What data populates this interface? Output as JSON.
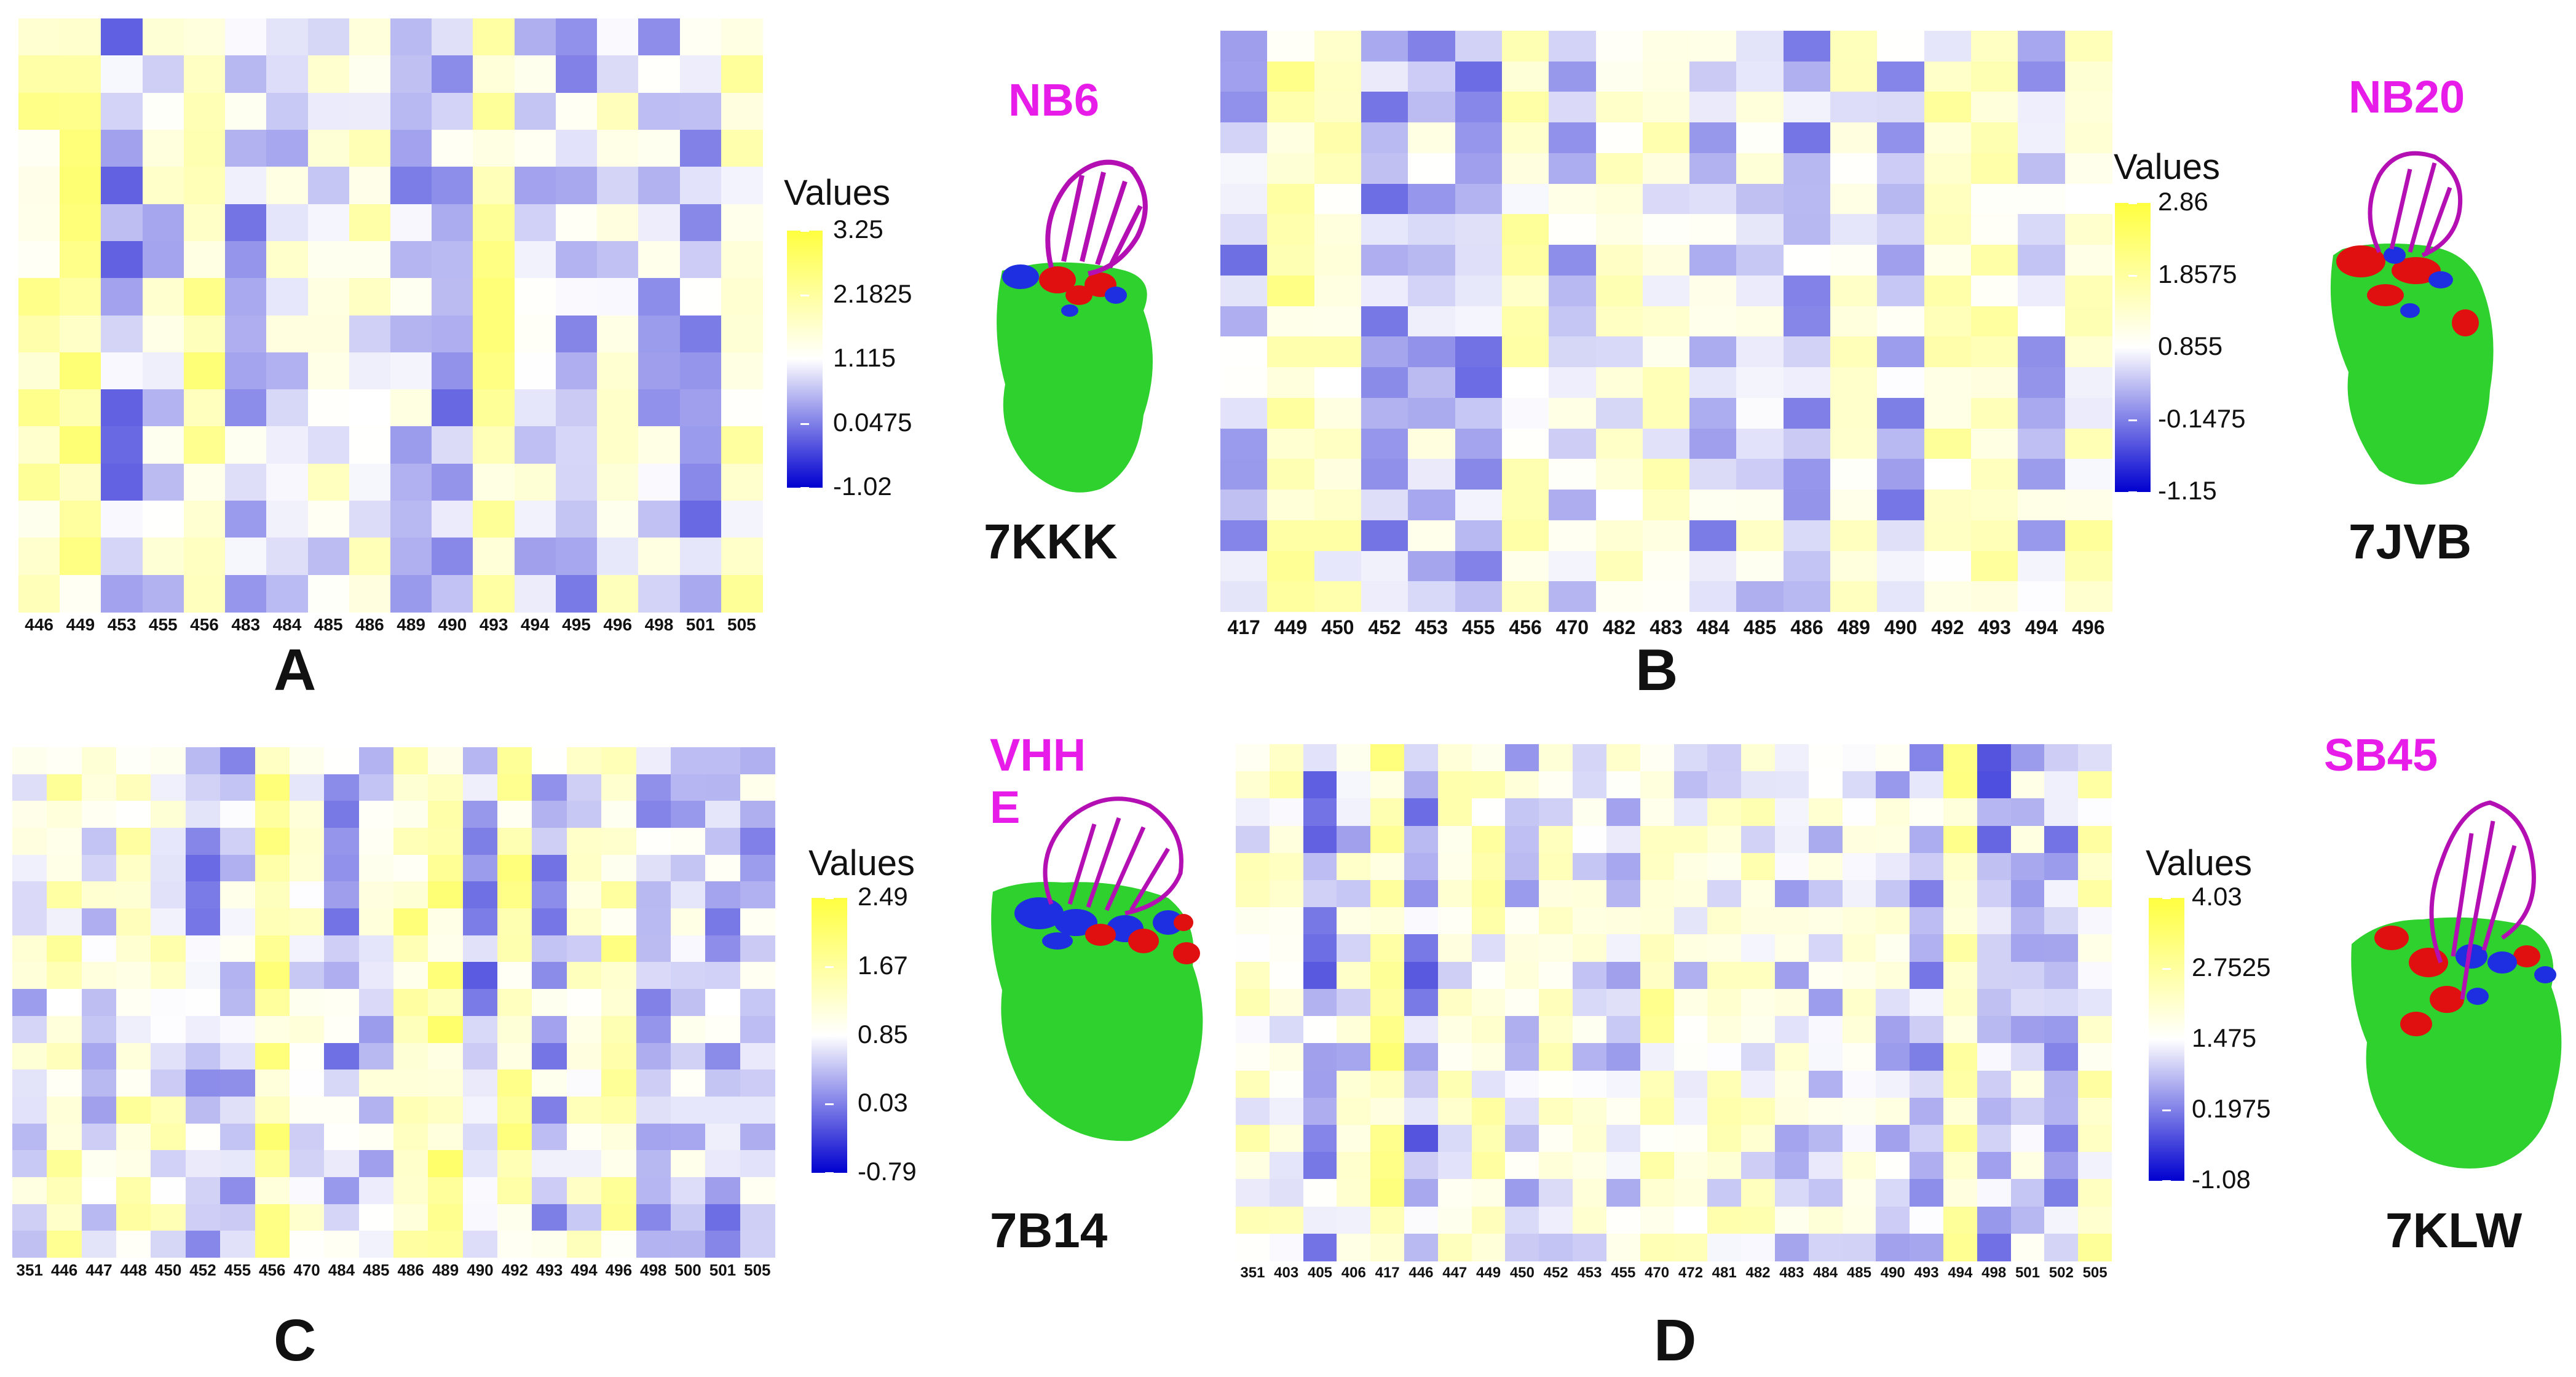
{
  "chart_data": [
    {
      "type": "heatmap",
      "panel_label": "A",
      "nanobody": "NB6",
      "pdb_id": "7KKK",
      "legend_title": "Values",
      "color_scale": [
        "#0000d0",
        "#ffffff",
        "#ffff40"
      ],
      "legend_ticks": [
        "3.25",
        "2.1825",
        "1.115",
        "0.0475",
        "-1.02"
      ],
      "value_range": [
        -1.02,
        3.25
      ],
      "x_tick_labels": [
        "446",
        "449",
        "453",
        "455",
        "456",
        "483",
        "484",
        "485",
        "486",
        "489",
        "490",
        "493",
        "494",
        "495",
        "496",
        "498",
        "501",
        "505"
      ],
      "row_count": 16
    },
    {
      "type": "heatmap",
      "panel_label": "B",
      "nanobody": "NB20",
      "pdb_id": "7JVB",
      "legend_title": "Values",
      "color_scale": [
        "#0000d0",
        "#ffffff",
        "#ffff40"
      ],
      "legend_ticks": [
        "2.86",
        "1.8575",
        "0.855",
        "-0.1475",
        "-1.15"
      ],
      "value_range": [
        -1.15,
        2.86
      ],
      "x_tick_labels": [
        "417",
        "449",
        "450",
        "452",
        "453",
        "455",
        "456",
        "470",
        "482",
        "483",
        "484",
        "485",
        "486",
        "489",
        "490",
        "492",
        "493",
        "494",
        "496"
      ],
      "row_count": 19
    },
    {
      "type": "heatmap",
      "panel_label": "C",
      "nanobody": "VHH E",
      "pdb_id": "7B14",
      "legend_title": "Values",
      "color_scale": [
        "#0000d0",
        "#ffffff",
        "#ffff40"
      ],
      "legend_ticks": [
        "2.49",
        "1.67",
        "0.85",
        "0.03",
        "-0.79"
      ],
      "value_range": [
        -0.79,
        2.49
      ],
      "x_tick_labels": [
        "351",
        "446",
        "447",
        "448",
        "450",
        "452",
        "455",
        "456",
        "470",
        "484",
        "485",
        "486",
        "489",
        "490",
        "492",
        "493",
        "494",
        "496",
        "498",
        "500",
        "501",
        "505"
      ],
      "row_count": 19
    },
    {
      "type": "heatmap",
      "panel_label": "D",
      "nanobody": "SB45",
      "pdb_id": "7KLW",
      "legend_title": "Values",
      "color_scale": [
        "#0000d0",
        "#ffffff",
        "#ffff40"
      ],
      "legend_ticks": [
        "4.03",
        "2.7525",
        "1.475",
        "0.1975",
        "-1.08"
      ],
      "value_range": [
        -1.08,
        4.03
      ],
      "x_tick_labels": [
        "351",
        "403",
        "405",
        "406",
        "417",
        "446",
        "447",
        "449",
        "450",
        "452",
        "453",
        "455",
        "470",
        "472",
        "481",
        "482",
        "483",
        "484",
        "485",
        "490",
        "493",
        "494",
        "498",
        "501",
        "502",
        "505"
      ],
      "row_count": 19
    }
  ]
}
